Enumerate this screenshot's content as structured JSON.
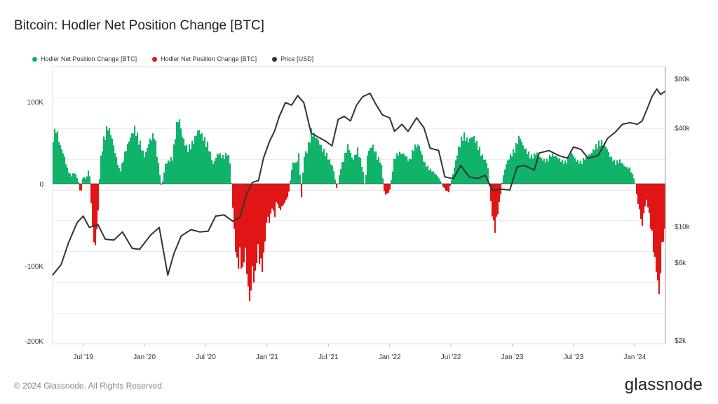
{
  "header": {
    "title": "Bitcoin: Hodler Net Position Change [BTC]"
  },
  "legend": [
    {
      "label": "Hodler Net Position Change [BTC]",
      "color": "#11b36a"
    },
    {
      "label": "Hodler Net Position Change [BTC]",
      "color": "#e01616"
    },
    {
      "label": "Price [USD]",
      "color": "#333333"
    }
  ],
  "footer": {
    "copyright": "© 2024 Glassnode. All Rights Reserved.",
    "brand": "glassnode"
  },
  "chart_data": {
    "type": "bar",
    "title": "Bitcoin: Hodler Net Position Change [BTC]",
    "x_range": [
      2019.25,
      2024.25
    ],
    "x_ticks": [
      {
        "label": "Jul '19",
        "t": 2019.5
      },
      {
        "label": "Jan '20",
        "t": 2020.0
      },
      {
        "label": "Jul '20",
        "t": 2020.5
      },
      {
        "label": "Jan '21",
        "t": 2021.0
      },
      {
        "label": "Jul '21",
        "t": 2021.5
      },
      {
        "label": "Jan '22",
        "t": 2022.0
      },
      {
        "label": "Jul '22",
        "t": 2022.5
      },
      {
        "label": "Jan '23",
        "t": 2023.0
      },
      {
        "label": "Jul '23",
        "t": 2023.5
      },
      {
        "label": "Jan '24",
        "t": 2024.0
      }
    ],
    "y_left": {
      "label": "Hodler Net Position Change [BTC]",
      "min": -200000,
      "max": 150000,
      "ticks": [
        {
          "label": "100K",
          "v": 100000
        },
        {
          "label": "0",
          "v": 0
        },
        {
          "label": "-100K",
          "v": -100000
        },
        {
          "label": "-200K",
          "v": -200000
        }
      ]
    },
    "y_right": {
      "label": "Price [USD]",
      "scale": "log",
      "min": 2000,
      "max": 100000,
      "ticks": [
        {
          "label": "$80k",
          "v": 80000
        },
        {
          "label": "$40k",
          "v": 40000
        },
        {
          "label": "$10k",
          "v": 10000
        },
        {
          "label": "$6k",
          "v": 6000
        },
        {
          "label": "$2k",
          "v": 2000
        }
      ]
    },
    "net_position_series": {
      "name": "Hodler Net Position Change [BTC]",
      "positive_color": "#11b36a",
      "negative_color": "#e01616",
      "points": [
        [
          2019.25,
          60000
        ],
        [
          2019.28,
          72000
        ],
        [
          2019.31,
          50000
        ],
        [
          2019.34,
          38000
        ],
        [
          2019.37,
          20000
        ],
        [
          2019.4,
          10000
        ],
        [
          2019.43,
          15000
        ],
        [
          2019.46,
          4000
        ],
        [
          2019.48,
          -15000
        ],
        [
          2019.5,
          12000
        ],
        [
          2019.52,
          6000
        ],
        [
          2019.55,
          20000
        ],
        [
          2019.58,
          -70000
        ],
        [
          2019.6,
          -80000
        ],
        [
          2019.62,
          -40000
        ],
        [
          2019.64,
          30000
        ],
        [
          2019.67,
          60000
        ],
        [
          2019.7,
          75000
        ],
        [
          2019.73,
          62000
        ],
        [
          2019.76,
          40000
        ],
        [
          2019.8,
          15000
        ],
        [
          2019.84,
          40000
        ],
        [
          2019.88,
          58000
        ],
        [
          2019.92,
          72000
        ],
        [
          2019.96,
          55000
        ],
        [
          2020.0,
          35000
        ],
        [
          2020.04,
          55000
        ],
        [
          2020.08,
          65000
        ],
        [
          2020.11,
          30000
        ],
        [
          2020.14,
          -5000
        ],
        [
          2020.17,
          25000
        ],
        [
          2020.2,
          30000
        ],
        [
          2020.23,
          35000
        ],
        [
          2020.26,
          75000
        ],
        [
          2020.28,
          86000
        ],
        [
          2020.31,
          60000
        ],
        [
          2020.35,
          45000
        ],
        [
          2020.4,
          55000
        ],
        [
          2020.44,
          70000
        ],
        [
          2020.48,
          60000
        ],
        [
          2020.52,
          50000
        ],
        [
          2020.56,
          25000
        ],
        [
          2020.6,
          40000
        ],
        [
          2020.64,
          35000
        ],
        [
          2020.68,
          40000
        ],
        [
          2020.7,
          25000
        ],
        [
          2020.72,
          -30000
        ],
        [
          2020.74,
          -80000
        ],
        [
          2020.76,
          -110000
        ],
        [
          2020.78,
          -90000
        ],
        [
          2020.8,
          -120000
        ],
        [
          2020.82,
          -80000
        ],
        [
          2020.84,
          -125000
        ],
        [
          2020.86,
          -155000
        ],
        [
          2020.88,
          -110000
        ],
        [
          2020.9,
          -130000
        ],
        [
          2020.92,
          -85000
        ],
        [
          2020.94,
          -100000
        ],
        [
          2020.96,
          -110000
        ],
        [
          2020.98,
          -80000
        ],
        [
          2021.0,
          -40000
        ],
        [
          2021.02,
          -50000
        ],
        [
          2021.04,
          -30000
        ],
        [
          2021.06,
          -45000
        ],
        [
          2021.08,
          -20000
        ],
        [
          2021.1,
          -35000
        ],
        [
          2021.12,
          -30000
        ],
        [
          2021.14,
          -25000
        ],
        [
          2021.16,
          -20000
        ],
        [
          2021.18,
          -10000
        ],
        [
          2021.2,
          20000
        ],
        [
          2021.22,
          30000
        ],
        [
          2021.24,
          25000
        ],
        [
          2021.26,
          40000
        ],
        [
          2021.28,
          -20000
        ],
        [
          2021.3,
          35000
        ],
        [
          2021.33,
          45000
        ],
        [
          2021.36,
          68000
        ],
        [
          2021.39,
          62000
        ],
        [
          2021.42,
          55000
        ],
        [
          2021.45,
          45000
        ],
        [
          2021.48,
          40000
        ],
        [
          2021.51,
          30000
        ],
        [
          2021.54,
          20000
        ],
        [
          2021.57,
          -8000
        ],
        [
          2021.6,
          20000
        ],
        [
          2021.63,
          35000
        ],
        [
          2021.66,
          50000
        ],
        [
          2021.7,
          30000
        ],
        [
          2021.74,
          45000
        ],
        [
          2021.78,
          20000
        ],
        [
          2021.8,
          -5000
        ],
        [
          2021.82,
          40000
        ],
        [
          2021.86,
          50000
        ],
        [
          2021.9,
          35000
        ],
        [
          2021.93,
          28000
        ],
        [
          2021.96,
          -15000
        ],
        [
          2022.0,
          -10000
        ],
        [
          2022.04,
          35000
        ],
        [
          2022.08,
          40000
        ],
        [
          2022.12,
          38000
        ],
        [
          2022.16,
          30000
        ],
        [
          2022.2,
          48000
        ],
        [
          2022.24,
          50000
        ],
        [
          2022.28,
          28000
        ],
        [
          2022.32,
          20000
        ],
        [
          2022.36,
          15000
        ],
        [
          2022.4,
          8000
        ],
        [
          2022.44,
          -5000
        ],
        [
          2022.48,
          -12000
        ],
        [
          2022.52,
          15000
        ],
        [
          2022.56,
          45000
        ],
        [
          2022.6,
          65000
        ],
        [
          2022.64,
          55000
        ],
        [
          2022.68,
          62000
        ],
        [
          2022.72,
          50000
        ],
        [
          2022.76,
          35000
        ],
        [
          2022.8,
          25000
        ],
        [
          2022.82,
          -15000
        ],
        [
          2022.84,
          -45000
        ],
        [
          2022.86,
          -60000
        ],
        [
          2022.88,
          -40000
        ],
        [
          2022.9,
          -20000
        ],
        [
          2022.92,
          5000
        ],
        [
          2022.95,
          25000
        ],
        [
          2022.98,
          35000
        ],
        [
          2023.02,
          45000
        ],
        [
          2023.06,
          62000
        ],
        [
          2023.09,
          48000
        ],
        [
          2023.12,
          42000
        ],
        [
          2023.16,
          35000
        ],
        [
          2023.2,
          40000
        ],
        [
          2023.24,
          32000
        ],
        [
          2023.28,
          30000
        ],
        [
          2023.32,
          38000
        ],
        [
          2023.36,
          35000
        ],
        [
          2023.4,
          30000
        ],
        [
          2023.44,
          28000
        ],
        [
          2023.48,
          42000
        ],
        [
          2023.52,
          30000
        ],
        [
          2023.56,
          28000
        ],
        [
          2023.6,
          35000
        ],
        [
          2023.64,
          38000
        ],
        [
          2023.68,
          48000
        ],
        [
          2023.72,
          55000
        ],
        [
          2023.76,
          50000
        ],
        [
          2023.8,
          35000
        ],
        [
          2023.84,
          28000
        ],
        [
          2023.88,
          30000
        ],
        [
          2023.92,
          22000
        ],
        [
          2023.96,
          20000
        ],
        [
          2024.0,
          5000
        ],
        [
          2024.02,
          -20000
        ],
        [
          2024.04,
          -35000
        ],
        [
          2024.06,
          -55000
        ],
        [
          2024.08,
          -30000
        ],
        [
          2024.1,
          -20000
        ],
        [
          2024.12,
          -45000
        ],
        [
          2024.14,
          -65000
        ],
        [
          2024.16,
          -95000
        ],
        [
          2024.18,
          -115000
        ],
        [
          2024.2,
          -145000
        ],
        [
          2024.22,
          -80000
        ],
        [
          2024.25,
          -60000
        ]
      ]
    },
    "price_series": {
      "name": "Price [USD]",
      "color": "#333333",
      "points": [
        [
          2019.25,
          5000
        ],
        [
          2019.32,
          5800
        ],
        [
          2019.38,
          7900
        ],
        [
          2019.45,
          10500
        ],
        [
          2019.5,
          11500
        ],
        [
          2019.55,
          9800
        ],
        [
          2019.62,
          10200
        ],
        [
          2019.68,
          8300
        ],
        [
          2019.75,
          8200
        ],
        [
          2019.82,
          9200
        ],
        [
          2019.9,
          7300
        ],
        [
          2019.96,
          7200
        ],
        [
          2020.05,
          8800
        ],
        [
          2020.12,
          9800
        ],
        [
          2020.19,
          5000
        ],
        [
          2020.24,
          6800
        ],
        [
          2020.3,
          8700
        ],
        [
          2020.38,
          9500
        ],
        [
          2020.45,
          9200
        ],
        [
          2020.52,
          9300
        ],
        [
          2020.58,
          11500
        ],
        [
          2020.65,
          11700
        ],
        [
          2020.72,
          10700
        ],
        [
          2020.78,
          11300
        ],
        [
          2020.83,
          15500
        ],
        [
          2020.88,
          18500
        ],
        [
          2020.93,
          19000
        ],
        [
          2020.97,
          26000
        ],
        [
          2021.02,
          33000
        ],
        [
          2021.06,
          38000
        ],
        [
          2021.1,
          47000
        ],
        [
          2021.15,
          57000
        ],
        [
          2021.2,
          55000
        ],
        [
          2021.25,
          63000
        ],
        [
          2021.3,
          57000
        ],
        [
          2021.36,
          37000
        ],
        [
          2021.42,
          35000
        ],
        [
          2021.48,
          33000
        ],
        [
          2021.53,
          31000
        ],
        [
          2021.58,
          45000
        ],
        [
          2021.63,
          47000
        ],
        [
          2021.68,
          44000
        ],
        [
          2021.73,
          55000
        ],
        [
          2021.78,
          62000
        ],
        [
          2021.84,
          65000
        ],
        [
          2021.88,
          57000
        ],
        [
          2021.94,
          48000
        ],
        [
          2022.0,
          46000
        ],
        [
          2022.04,
          38000
        ],
        [
          2022.1,
          42000
        ],
        [
          2022.15,
          38000
        ],
        [
          2022.22,
          46000
        ],
        [
          2022.28,
          40000
        ],
        [
          2022.33,
          30000
        ],
        [
          2022.4,
          29000
        ],
        [
          2022.45,
          20000
        ],
        [
          2022.52,
          19500
        ],
        [
          2022.58,
          23500
        ],
        [
          2022.65,
          20000
        ],
        [
          2022.72,
          19500
        ],
        [
          2022.78,
          20500
        ],
        [
          2022.84,
          16500
        ],
        [
          2022.92,
          16800
        ],
        [
          2022.98,
          16600
        ],
        [
          2023.04,
          23000
        ],
        [
          2023.1,
          23500
        ],
        [
          2023.18,
          22000
        ],
        [
          2023.22,
          28000
        ],
        [
          2023.3,
          29000
        ],
        [
          2023.38,
          27000
        ],
        [
          2023.45,
          26000
        ],
        [
          2023.5,
          30500
        ],
        [
          2023.56,
          29500
        ],
        [
          2023.62,
          26000
        ],
        [
          2023.7,
          27000
        ],
        [
          2023.78,
          34500
        ],
        [
          2023.84,
          37500
        ],
        [
          2023.9,
          42000
        ],
        [
          2023.96,
          43000
        ],
        [
          2024.02,
          42000
        ],
        [
          2024.06,
          44000
        ],
        [
          2024.1,
          52000
        ],
        [
          2024.14,
          62000
        ],
        [
          2024.18,
          69000
        ],
        [
          2024.21,
          64000
        ],
        [
          2024.25,
          67000
        ]
      ]
    }
  }
}
